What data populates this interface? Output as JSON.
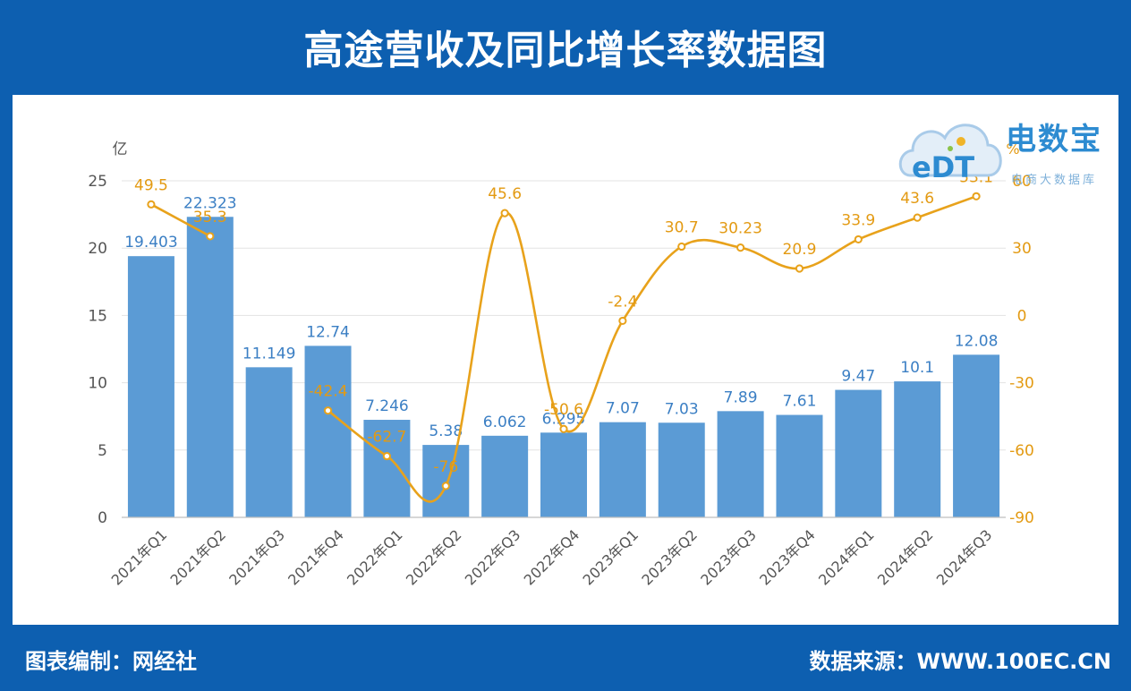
{
  "header": {
    "title": "高途营收及同比增长率数据图"
  },
  "footer": {
    "left": "图表编制：网经社",
    "right": "数据来源：WWW.100EC.CN"
  },
  "logo": {
    "name": "电数宝",
    "subtitle": "电商大数据库",
    "mark": "eDT"
  },
  "colors": {
    "bar": "#5b9bd5",
    "line": "#e8a21b",
    "frame": "#0d5fb0",
    "bar_label": "#3b7fc4",
    "line_label": "#e39a12"
  },
  "chart_data": {
    "type": "bar",
    "categories": [
      "2021年Q1",
      "2021年Q2",
      "2021年Q3",
      "2021年Q4",
      "2022年Q1",
      "2022年Q2",
      "2022年Q3",
      "2022年Q4",
      "2023年Q1",
      "2023年Q2",
      "2023年Q3",
      "2023年Q4",
      "2024年Q1",
      "2024年Q2",
      "2024年Q3"
    ],
    "series": [
      {
        "name": "营收",
        "type": "bar",
        "axis": "left",
        "values": [
          19.403,
          22.323,
          11.149,
          12.74,
          7.246,
          5.38,
          6.062,
          6.295,
          7.07,
          7.03,
          7.89,
          7.61,
          9.47,
          10.1,
          12.08
        ],
        "labels": [
          "19.403",
          "22.323",
          "11.149",
          "12.74",
          "7.246",
          "5.38",
          "6.062",
          "6.295",
          "7.07",
          "7.03",
          "7.89",
          "7.61",
          "9.47",
          "10.1",
          "12.08"
        ]
      },
      {
        "name": "同比增长率",
        "type": "line",
        "axis": "right",
        "values": [
          49.5,
          35.3,
          null,
          -42.4,
          -62.7,
          -76,
          45.6,
          -50.6,
          -2.4,
          30.7,
          30.23,
          20.9,
          33.9,
          43.6,
          53.1
        ],
        "labels": [
          "49.5",
          "35.3",
          null,
          "-42.4",
          "-62.7",
          "-76",
          "45.6",
          "-50.6",
          "-2.4",
          "30.7",
          "30.23",
          "20.9",
          "33.9",
          "43.6",
          "53.1"
        ]
      }
    ],
    "y_left": {
      "unit": "亿",
      "min": 0,
      "max": 25,
      "ticks": [
        0,
        5,
        10,
        15,
        20,
        25
      ]
    },
    "y_right": {
      "unit": "%",
      "min": -90,
      "max": 60,
      "ticks": [
        -90,
        -60,
        -30,
        0,
        30,
        60
      ]
    },
    "grid": true
  }
}
